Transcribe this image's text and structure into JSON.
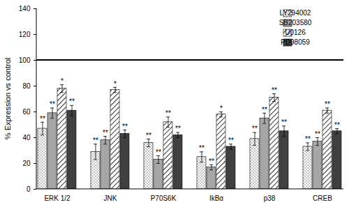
{
  "chart_data": {
    "type": "bar",
    "y_label": "% Expression vs control",
    "categories": [
      "ERK 1/2",
      "JNK",
      "P70S6K",
      "IkBα",
      "p38",
      "CREB"
    ],
    "series": [
      {
        "name": "LY294002",
        "color": "#ffffff",
        "values": [
          47,
          29,
          36,
          25,
          39,
          33
        ],
        "errors": [
          5,
          6,
          3,
          4,
          5,
          3
        ],
        "significance": [
          "**",
          "**",
          "**",
          "**",
          "**",
          "**"
        ]
      },
      {
        "name": "SB203580",
        "color": "#a6a6a6",
        "values": [
          59,
          38,
          23,
          17,
          55,
          37
        ],
        "errors": [
          4,
          3,
          3,
          2,
          4,
          3
        ],
        "significance": [
          "**",
          "**",
          "**",
          "**",
          "**",
          "**"
        ]
      },
      {
        "name": "U0126",
        "color": "#ffffff",
        "values": [
          78,
          77,
          52,
          58,
          71,
          61
        ],
        "errors": [
          3,
          2,
          4,
          2,
          3,
          2
        ],
        "significance": [
          "*",
          "*",
          "**",
          "*",
          "**",
          "**"
        ]
      },
      {
        "name": "PD98059",
        "color": "#404040",
        "values": [
          61,
          43,
          42,
          33,
          45,
          45
        ],
        "errors": [
          4,
          3,
          2,
          2,
          4,
          2
        ],
        "significance": [
          "**",
          "**",
          "**",
          "**",
          "**",
          "**"
        ]
      }
    ],
    "reference_lines": [
      100
    ],
    "ylim": [
      0,
      140
    ],
    "yticks": [
      0,
      20,
      40,
      60,
      80,
      100,
      120,
      140
    ],
    "legend": "top-right",
    "grid": false
  }
}
